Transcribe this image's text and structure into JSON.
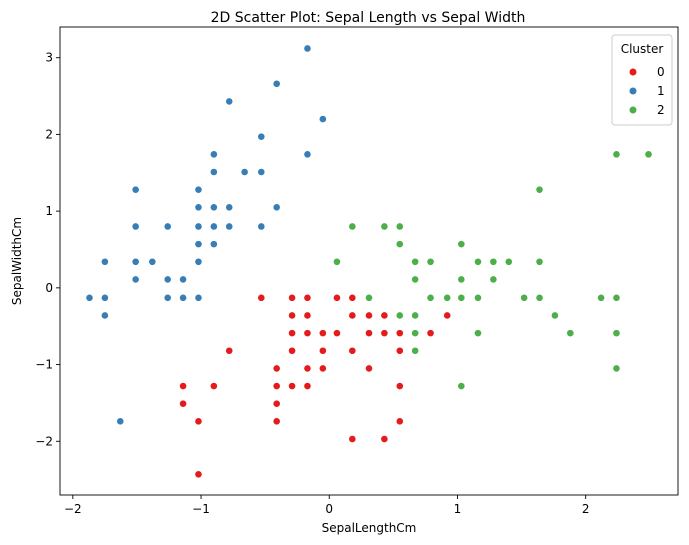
{
  "chart_data": {
    "type": "scatter",
    "title": "2D Scatter Plot: Sepal Length vs Sepal Width",
    "xlabel": "SepalLengthCm",
    "ylabel": "SepalWidthCm",
    "xlim": [
      -2.1,
      2.72
    ],
    "ylim": [
      -2.7,
      3.4
    ],
    "x_ticks": [
      -2,
      -1,
      0,
      1,
      2
    ],
    "x_tick_labels": [
      "−2",
      "−1",
      "0",
      "1",
      "2"
    ],
    "y_ticks": [
      -2,
      -1,
      0,
      1,
      2,
      3
    ],
    "y_tick_labels": [
      "−2",
      "−1",
      "0",
      "1",
      "2",
      "3"
    ],
    "grid": false,
    "legend": {
      "title": "Cluster",
      "placement": "top-right",
      "entries": [
        "0",
        "1",
        "2"
      ]
    },
    "series": [
      {
        "name": "0",
        "color": "#e41a1c",
        "points": [
          [
            -0.53,
            -0.13
          ],
          [
            -0.29,
            -0.13
          ],
          [
            -0.17,
            -0.13
          ],
          [
            0.06,
            -0.13
          ],
          [
            0.18,
            -0.13
          ],
          [
            -0.29,
            -0.36
          ],
          [
            -0.17,
            -0.36
          ],
          [
            0.18,
            -0.36
          ],
          [
            0.31,
            -0.36
          ],
          [
            0.43,
            -0.36
          ],
          [
            0.55,
            -0.36
          ],
          [
            0.67,
            -0.36
          ],
          [
            0.92,
            -0.36
          ],
          [
            -0.29,
            -0.59
          ],
          [
            -0.17,
            -0.59
          ],
          [
            -0.05,
            -0.59
          ],
          [
            0.06,
            -0.59
          ],
          [
            0.31,
            -0.59
          ],
          [
            0.43,
            -0.59
          ],
          [
            0.55,
            -0.59
          ],
          [
            0.67,
            -0.59
          ],
          [
            0.79,
            -0.59
          ],
          [
            -0.78,
            -0.82
          ],
          [
            -0.29,
            -0.82
          ],
          [
            -0.05,
            -0.82
          ],
          [
            0.18,
            -0.82
          ],
          [
            0.55,
            -0.82
          ],
          [
            -0.41,
            -1.05
          ],
          [
            -0.17,
            -1.05
          ],
          [
            -0.05,
            -1.05
          ],
          [
            0.31,
            -1.05
          ],
          [
            -1.14,
            -1.28
          ],
          [
            -0.9,
            -1.28
          ],
          [
            -0.41,
            -1.28
          ],
          [
            -0.29,
            -1.28
          ],
          [
            -0.17,
            -1.28
          ],
          [
            0.55,
            -1.28
          ],
          [
            -1.14,
            -1.51
          ],
          [
            -0.41,
            -1.51
          ],
          [
            -1.02,
            -1.74
          ],
          [
            -0.41,
            -1.74
          ],
          [
            0.55,
            -1.74
          ],
          [
            0.18,
            -1.97
          ],
          [
            0.43,
            -1.97
          ],
          [
            -1.02,
            -2.43
          ]
        ]
      },
      {
        "name": "1",
        "color": "#377eb8",
        "points": [
          [
            -0.17,
            3.12
          ],
          [
            -0.41,
            2.66
          ],
          [
            -0.78,
            2.43
          ],
          [
            -0.05,
            2.2
          ],
          [
            -0.53,
            1.97
          ],
          [
            -0.9,
            1.74
          ],
          [
            -0.17,
            1.74
          ],
          [
            -0.9,
            1.51
          ],
          [
            -0.66,
            1.51
          ],
          [
            -0.53,
            1.51
          ],
          [
            -1.51,
            1.28
          ],
          [
            -1.02,
            1.28
          ],
          [
            -1.02,
            1.05
          ],
          [
            -0.9,
            1.05
          ],
          [
            -0.78,
            1.05
          ],
          [
            -0.41,
            1.05
          ],
          [
            -1.51,
            0.8
          ],
          [
            -1.26,
            0.8
          ],
          [
            -1.02,
            0.8
          ],
          [
            -0.9,
            0.8
          ],
          [
            -0.78,
            0.8
          ],
          [
            -0.53,
            0.8
          ],
          [
            -1.02,
            0.57
          ],
          [
            -0.9,
            0.57
          ],
          [
            -1.75,
            0.34
          ],
          [
            -1.51,
            0.34
          ],
          [
            -1.38,
            0.34
          ],
          [
            -1.02,
            0.34
          ],
          [
            -1.51,
            0.11
          ],
          [
            -1.26,
            0.11
          ],
          [
            -1.14,
            0.11
          ],
          [
            -1.87,
            -0.13
          ],
          [
            -1.75,
            -0.13
          ],
          [
            -1.26,
            -0.13
          ],
          [
            -1.14,
            -0.13
          ],
          [
            -1.02,
            -0.13
          ],
          [
            -1.75,
            -0.36
          ],
          [
            -1.63,
            -1.74
          ]
        ]
      },
      {
        "name": "2",
        "color": "#4daf4a",
        "points": [
          [
            2.24,
            1.74
          ],
          [
            2.49,
            1.74
          ],
          [
            1.64,
            1.28
          ],
          [
            0.18,
            0.8
          ],
          [
            0.43,
            0.8
          ],
          [
            0.55,
            0.8
          ],
          [
            0.55,
            0.57
          ],
          [
            1.03,
            0.57
          ],
          [
            0.06,
            0.34
          ],
          [
            0.67,
            0.34
          ],
          [
            0.79,
            0.34
          ],
          [
            1.16,
            0.34
          ],
          [
            1.28,
            0.34
          ],
          [
            1.4,
            0.34
          ],
          [
            1.64,
            0.34
          ],
          [
            0.67,
            0.11
          ],
          [
            1.03,
            0.11
          ],
          [
            1.28,
            0.11
          ],
          [
            0.31,
            -0.13
          ],
          [
            0.79,
            -0.13
          ],
          [
            0.92,
            -0.13
          ],
          [
            1.03,
            -0.13
          ],
          [
            1.16,
            -0.13
          ],
          [
            1.52,
            -0.13
          ],
          [
            1.64,
            -0.13
          ],
          [
            2.12,
            -0.13
          ],
          [
            2.24,
            -0.13
          ],
          [
            0.55,
            -0.36
          ],
          [
            0.67,
            -0.36
          ],
          [
            1.76,
            -0.36
          ],
          [
            0.67,
            -0.59
          ],
          [
            1.16,
            -0.59
          ],
          [
            1.88,
            -0.59
          ],
          [
            2.24,
            -0.59
          ],
          [
            0.67,
            -0.82
          ],
          [
            2.24,
            -1.05
          ],
          [
            1.03,
            -1.28
          ]
        ]
      }
    ]
  }
}
